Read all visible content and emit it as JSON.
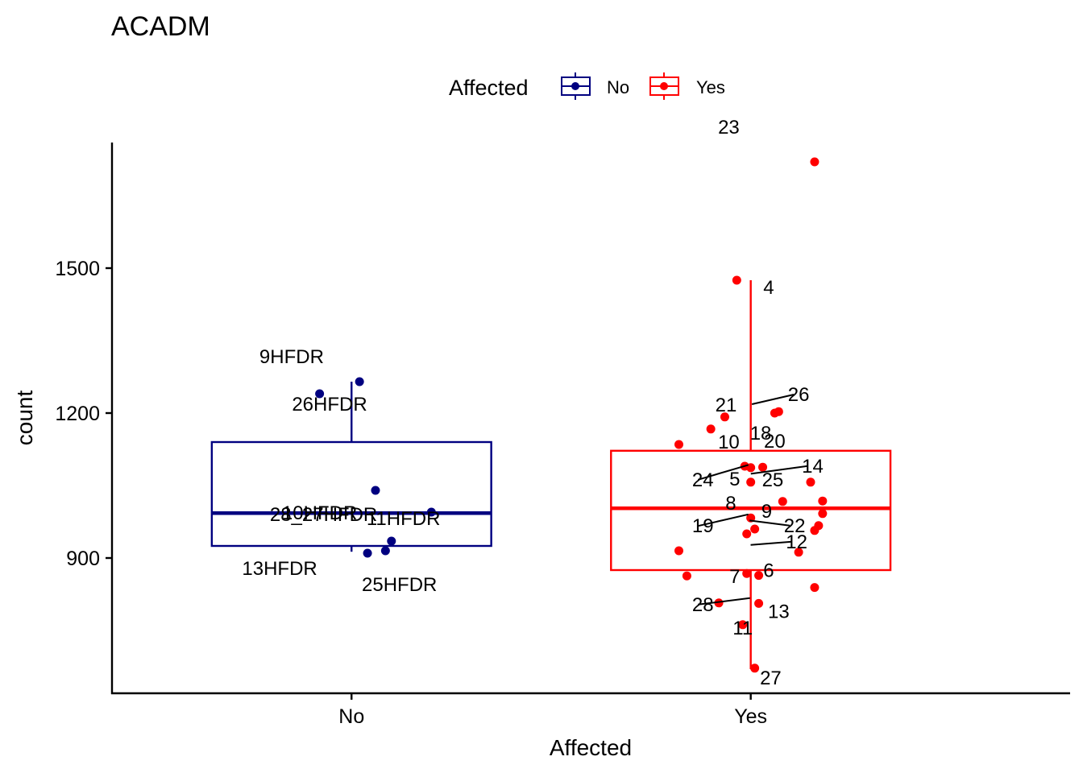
{
  "chart_data": {
    "type": "boxplot",
    "title": "ACADM",
    "xlabel": "Affected",
    "ylabel": "count",
    "categories": [
      "No",
      "Yes"
    ],
    "yticks": [
      900,
      1200,
      1500
    ],
    "ylim": [
      620,
      1760
    ],
    "legend": {
      "title": "Affected",
      "position": "top",
      "entries": [
        {
          "label": "No",
          "color": "#000080"
        },
        {
          "label": "Yes",
          "color": "#ff0000"
        }
      ]
    },
    "series": [
      {
        "name": "No",
        "color": "#000080",
        "box": {
          "whisker_low": 913,
          "q1": 925,
          "median": 993,
          "q3": 1140,
          "whisker_high": 1265
        },
        "points": [
          {
            "label": "26HFDR",
            "jitter": 0.02,
            "y": 1265,
            "label_dx": -0.075,
            "label_dy": 36
          },
          {
            "label": "9HFDR",
            "jitter": -0.08,
            "y": 1240,
            "label_dx": -0.07,
            "label_dy": -38
          },
          {
            "label": "10HFDR",
            "jitter": 0.06,
            "y": 1040,
            "label_dx": -0.14,
            "label_dy": 36
          },
          {
            "label": "11HFDR",
            "jitter": 0.2,
            "y": 995,
            "label_dx": -0.07,
            "label_dy": 16
          },
          {
            "label": "13HFDR",
            "jitter": 0.1,
            "y": 935,
            "label_dx": -0.28,
            "label_dy": 42
          },
          {
            "label": "25HFDR",
            "jitter": 0.085,
            "y": 915,
            "label_dx": 0.035,
            "label_dy": 50
          },
          {
            "label": "28_27HFDR",
            "jitter": 0.04,
            "y": 910,
            "label_dx": -0.11,
            "label_dy": -40
          }
        ]
      },
      {
        "name": "Yes",
        "color": "#ff0000",
        "box": {
          "whisker_low": 670,
          "q1": 875,
          "median": 1003,
          "q3": 1122,
          "whisker_high": 1475
        },
        "points": [
          {
            "label": "23",
            "jitter": 0.16,
            "y": 1720,
            "label_dx": -0.215,
            "label_dy": -35
          },
          {
            "label": "4",
            "jitter": -0.035,
            "y": 1475,
            "label_dx": 0.08,
            "label_dy": 17
          },
          {
            "label": "18",
            "jitter": 0.07,
            "y": 1203,
            "label_dx": -0.045,
            "label_dy": 35
          },
          {
            "label": "26",
            "jitter": 0.06,
            "y": 1200,
            "label_dx": 0.06,
            "label_dy": -15,
            "leader": true
          },
          {
            "label": "21",
            "jitter": -0.065,
            "y": 1192,
            "label_dx": 0.003,
            "label_dy": -7
          },
          {
            "label": "",
            "jitter": -0.1,
            "y": 1167,
            "label_dx": 0,
            "label_dy": 0
          },
          {
            "label": "",
            "jitter": -0.18,
            "y": 1135,
            "label_dx": 0,
            "label_dy": 0
          },
          {
            "label": "10",
            "jitter": -0.015,
            "y": 1090,
            "label_dx": -0.04,
            "label_dy": -22
          },
          {
            "label": "20",
            "jitter": 0.03,
            "y": 1088,
            "label_dx": 0.03,
            "label_dy": -24
          },
          {
            "label": "24",
            "jitter": 0.0,
            "y": 1087,
            "label_dx": -0.12,
            "label_dy": 23,
            "leader": true
          },
          {
            "label": "14",
            "jitter": 0.15,
            "y": 1057,
            "label_dx": 0.005,
            "label_dy": -12,
            "leader": true
          },
          {
            "label": "5",
            "jitter": 0.0,
            "y": 1057,
            "label_dx": -0.04,
            "label_dy": 4
          },
          {
            "label": "25",
            "jitter": 0.08,
            "y": 1017,
            "label_dx": -0.025,
            "label_dy": -19
          },
          {
            "label": "",
            "jitter": 0.18,
            "y": 1018,
            "label_dx": 0,
            "label_dy": 0
          },
          {
            "label": "",
            "jitter": 0.18,
            "y": 992,
            "label_dx": 0,
            "label_dy": 0
          },
          {
            "label": "22",
            "jitter": 0.17,
            "y": 967,
            "label_dx": -0.06,
            "label_dy": 8,
            "leader": true
          },
          {
            "label": "19",
            "jitter": 0.0,
            "y": 983,
            "label_dx": -0.12,
            "label_dy": 18,
            "leader": true
          },
          {
            "label": "",
            "jitter": 0.16,
            "y": 957,
            "label_dx": 0,
            "label_dy": 0
          },
          {
            "label": "9",
            "jitter": 0.01,
            "y": 960,
            "label_dx": 0.03,
            "label_dy": -14
          },
          {
            "label": "8",
            "jitter": -0.01,
            "y": 950,
            "label_dx": -0.04,
            "label_dy": -30
          },
          {
            "label": "",
            "jitter": -0.18,
            "y": 915,
            "label_dx": 0,
            "label_dy": 0
          },
          {
            "label": "12",
            "jitter": 0.12,
            "y": 912,
            "label_dx": -0.005,
            "label_dy": -5,
            "leader": true
          },
          {
            "label": "",
            "jitter": -0.16,
            "y": 863,
            "label_dx": 0,
            "label_dy": 0
          },
          {
            "label": "7",
            "jitter": -0.01,
            "y": 868,
            "label_dx": -0.03,
            "label_dy": 12
          },
          {
            "label": "6",
            "jitter": 0.02,
            "y": 864,
            "label_dx": 0.025,
            "label_dy": 2
          },
          {
            "label": "",
            "jitter": 0.16,
            "y": 839,
            "label_dx": 0,
            "label_dy": 0
          },
          {
            "label": "28",
            "jitter": -0.08,
            "y": 807,
            "label_dx": -0.04,
            "label_dy": 10,
            "leader": true
          },
          {
            "label": "13",
            "jitter": 0.02,
            "y": 806,
            "label_dx": 0.05,
            "label_dy": 18
          },
          {
            "label": "11",
            "jitter": -0.02,
            "y": 762,
            "label_dx": 0.0,
            "label_dy": 12
          },
          {
            "label": "27",
            "jitter": 0.01,
            "y": 672,
            "label_dx": 0.04,
            "label_dy": 20
          }
        ]
      }
    ]
  }
}
